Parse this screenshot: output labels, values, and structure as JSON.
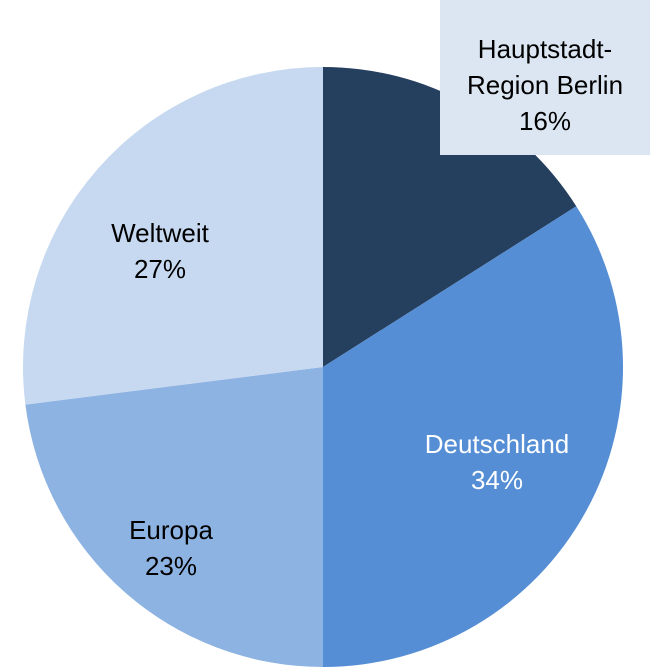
{
  "chart_data": {
    "type": "pie",
    "categories": [
      "Hauptstadt-Region Berlin",
      "Deutschland",
      "Europa",
      "Weltweit"
    ],
    "values": [
      16,
      34,
      23,
      27
    ],
    "value_labels": [
      "16%",
      "34%",
      "23%",
      "27%"
    ],
    "colors": [
      "#253f5f",
      "#558ed5",
      "#8db3e2",
      "#c6d9f1"
    ]
  }
}
